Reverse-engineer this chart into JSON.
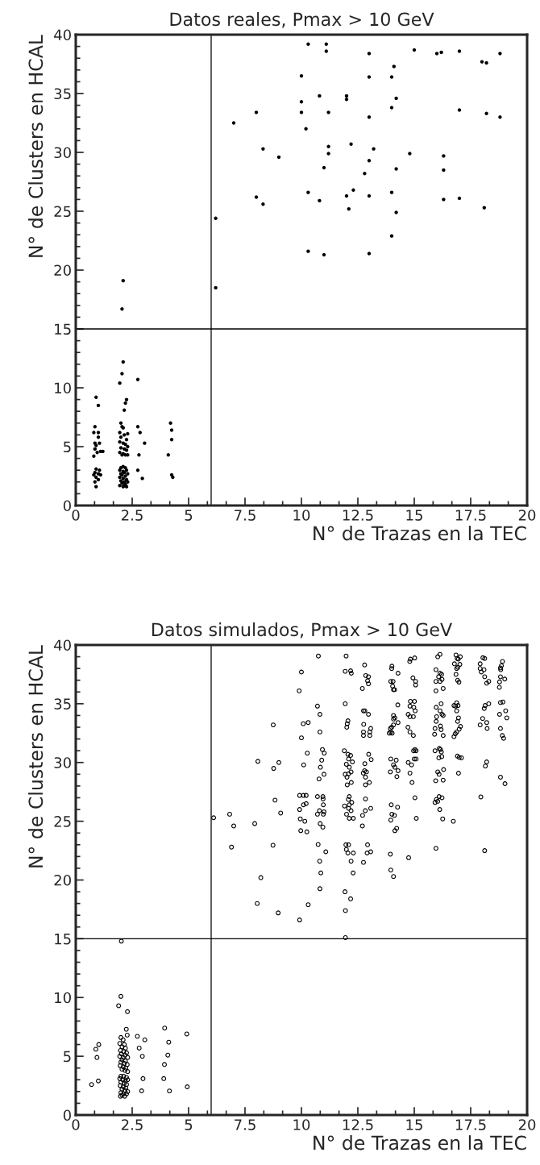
{
  "chart_data": [
    {
      "type": "scatter",
      "title": "Datos reales, Pmax > 10 GeV",
      "xlabel": "N° de Trazas en la TEC",
      "ylabel": "N° de Clusters en HCAL",
      "xlim": [
        0,
        20
      ],
      "ylim": [
        0,
        40
      ],
      "xticks": [
        0,
        2.5,
        5,
        7.5,
        10,
        12.5,
        15,
        17.5,
        20
      ],
      "yticks": [
        0,
        5,
        10,
        15,
        20,
        25,
        30,
        35,
        40
      ],
      "marker": "circle",
      "ref_lines": [
        {
          "axis": "x",
          "value": 6
        },
        {
          "axis": "y",
          "value": 15
        }
      ],
      "series": [
        {
          "color": "#000000",
          "x": [
            6.2,
            6.2,
            7.0,
            8.0,
            8.0,
            8.3,
            8.3,
            9.0,
            10.0,
            10.0,
            10.0,
            10.2,
            10.3,
            10.3,
            10.3,
            10.8,
            10.8,
            11.0,
            11.0,
            11.1,
            11.1,
            11.2,
            11.2,
            11.2,
            12.0,
            12.0,
            12.0,
            12.1,
            12.2,
            12.3,
            12.8,
            13.0,
            13.0,
            13.0,
            13.0,
            13.0,
            13.0,
            13.2,
            14.0,
            14.0,
            14.0,
            14.0,
            14.1,
            14.2,
            14.2,
            14.2,
            14.8,
            15.0,
            16.0,
            16.2,
            16.3,
            16.3,
            16.3,
            17.0,
            17.0,
            17.0,
            18.0,
            18.2,
            18.1,
            18.2,
            18.8,
            18.8,
            0.9,
            1.0,
            0.85,
            0.8,
            1.0,
            1.0,
            0.85,
            1.05,
            0.9,
            0.85,
            1.1,
            0.95,
            1.2,
            0.8,
            0.9,
            1.05,
            0.85,
            1.0,
            0.8,
            1.1,
            0.9,
            1.0,
            0.85,
            0.9,
            2.1,
            2.05,
            2.1,
            2.05,
            1.95,
            2.25,
            2.2,
            2.15,
            2.0,
            2.05,
            2.1,
            1.95,
            2.15,
            2.3,
            2.0,
            2.25,
            1.95,
            2.1,
            2.2,
            2.3,
            2.0,
            2.15,
            2.25,
            1.95,
            2.1,
            2.2,
            2.3,
            2.05,
            2.1,
            2.0,
            2.2,
            2.25,
            1.95,
            2.1,
            2.15,
            2.0,
            2.3,
            2.05,
            2.2,
            1.95,
            2.1,
            2.25,
            2.0,
            2.15,
            2.3,
            2.05,
            2.2,
            1.95,
            2.1,
            2.25,
            2.15,
            2.75,
            2.75,
            2.85,
            3.05,
            2.8,
            2.75,
            2.95,
            4.2,
            4.25,
            4.25,
            4.1,
            4.25,
            4.3
          ],
          "values": [
            18.5,
            24.4,
            32.5,
            33.4,
            26.2,
            25.6,
            30.3,
            29.6,
            36.5,
            34.3,
            33.4,
            32.0,
            39.2,
            26.6,
            21.6,
            34.8,
            25.9,
            28.7,
            21.3,
            39.2,
            38.6,
            30.5,
            29.9,
            33.4,
            34.8,
            34.5,
            26.3,
            25.2,
            30.7,
            26.8,
            28.2,
            38.4,
            36.4,
            33.0,
            29.3,
            26.3,
            21.4,
            30.3,
            36.4,
            33.8,
            26.6,
            22.9,
            37.3,
            34.6,
            28.6,
            24.9,
            29.9,
            38.7,
            38.4,
            38.5,
            29.7,
            28.5,
            26.0,
            38.6,
            33.6,
            26.1,
            37.7,
            37.6,
            25.3,
            33.3,
            38.4,
            33.0,
            9.2,
            8.5,
            6.7,
            6.2,
            6.2,
            5.8,
            5.3,
            5.3,
            5.1,
            4.8,
            4.6,
            4.5,
            4.6,
            4.2,
            3.1,
            3.0,
            2.8,
            2.7,
            2.6,
            2.6,
            2.4,
            2.2,
            2.0,
            1.6,
            19.1,
            16.7,
            12.2,
            11.2,
            10.4,
            9.0,
            8.7,
            8.1,
            7.0,
            6.7,
            6.6,
            6.2,
            6.0,
            6.1,
            5.8,
            5.6,
            5.4,
            5.3,
            5.2,
            5.0,
            4.9,
            4.8,
            4.7,
            4.5,
            4.4,
            4.3,
            4.3,
            4.3,
            3.3,
            3.2,
            3.2,
            3.0,
            3.0,
            2.9,
            2.8,
            2.7,
            2.7,
            2.6,
            2.5,
            2.4,
            2.3,
            2.2,
            2.1,
            2.0,
            2.0,
            1.9,
            1.8,
            1.7,
            1.6,
            1.6,
            1.7,
            10.7,
            6.7,
            6.2,
            5.3,
            4.3,
            3.0,
            2.3,
            7.0,
            6.4,
            5.6,
            4.3,
            2.6,
            2.4
          ]
        }
      ]
    },
    {
      "type": "scatter",
      "title": "Datos simulados, Pmax > 10 GeV",
      "xlabel": "N° de Trazas en la TEC",
      "ylabel": "N° de Clusters en HCAL",
      "xlim": [
        0,
        20
      ],
      "ylim": [
        0,
        40
      ],
      "xticks": [
        0,
        2.5,
        5,
        7.5,
        10,
        12.5,
        15,
        17.5,
        20
      ],
      "yticks": [
        0,
        5,
        10,
        15,
        20,
        25,
        30,
        35,
        40
      ],
      "marker": "circle",
      "ref_lines": [
        {
          "axis": "x",
          "value": 6
        },
        {
          "axis": "y",
          "value": 15
        }
      ],
      "series": [
        {
          "color": "#000000",
          "x": [
            6.11,
            6.82,
            7.0,
            6.9,
            7.93,
            8.07,
            8.77,
            9.0,
            8.75,
            8.83,
            9.08,
            8.74,
            8.2,
            10.0,
            9.9,
            10.08,
            10.3,
            10.0,
            10.26,
            10.1,
            9.92,
            10.09,
            10.21,
            10.09,
            10.21,
            9.92,
            9.95,
            10.15,
            9.97,
            10.24,
            10.75,
            10.71,
            10.82,
            10.82,
            10.93,
            11.01,
            10.9,
            10.84,
            11.0,
            10.78,
            10.71,
            10.95,
            10.96,
            10.97,
            10.8,
            11.0,
            10.71,
            10.97,
            10.83,
            10.95,
            10.74,
            11.08,
            10.81,
            10.86,
            10.82,
            11.93,
            12.18,
            11.95,
            8.04,
            8.97,
            10.3,
            9.92,
            11.95,
            11.98,
            11.94,
            12.18,
            12.21,
            11.94,
            12.06,
            12.03,
            12.01,
            11.9,
            12.06,
            12.18,
            12.09,
            12.26,
            11.99,
            12.12,
            11.94,
            12.09,
            12.2,
            12.02,
            12.21,
            12.03,
            12.12,
            12.08,
            12.23,
            12.12,
            11.91,
            12.09,
            12.2,
            12.0,
            12.12,
            12.3,
            11.97,
            12.09,
            11.99,
            12.3,
            12.06,
            12.2,
            12.29,
            12.8,
            12.85,
            12.97,
            12.93,
            12.97,
            12.7,
            12.75,
            12.81,
            12.97,
            12.76,
            13.07,
            12.75,
            13.03,
            13.03,
            12.75,
            12.98,
            13.09,
            12.81,
            12.8,
            12.88,
            12.74,
            12.84,
            13.01,
            12.84,
            12.84,
            13.07,
            12.83,
            12.71,
            12.7,
            12.93,
            13.07,
            12.91,
            12.75,
            14.01,
            14.0,
            14.28,
            13.96,
            14.06,
            14.04,
            14.08,
            14.13,
            14.27,
            14.08,
            14.14,
            14.08,
            14.28,
            14.08,
            14.0,
            13.94,
            13.96,
            14.02,
            13.89,
            13.96,
            14.2,
            14.08,
            14.14,
            14.28,
            13.94,
            14.23,
            13.98,
            14.26,
            14.01,
            14.12,
            13.96,
            14.22,
            14.14,
            13.94,
            13.96,
            14.08,
            14.83,
            15.02,
            14.8,
            14.94,
            15.06,
            15.06,
            14.83,
            15.01,
            14.81,
            14.98,
            15.04,
            14.73,
            14.81,
            14.96,
            14.72,
            14.81,
            14.96,
            15.03,
            14.97,
            15.08,
            15.0,
            15.08,
            14.73,
            14.88,
            14.81,
            14.9,
            15.03,
            15.09,
            14.75,
            16.04,
            16.14,
            15.96,
            16.14,
            16.08,
            16.21,
            16.23,
            15.96,
            16.14,
            16.28,
            15.96,
            15.97,
            16.19,
            16.14,
            16.23,
            16.28,
            15.99,
            15.97,
            16.16,
            16.19,
            15.92,
            15.9,
            16.28,
            16.11,
            16.16,
            15.92,
            16.2,
            16.09,
            16.22,
            16.3,
            16.04,
            16.1,
            15.95,
            16.28,
            15.92,
            16.1,
            15.98,
            16.04,
            16.13,
            16.23,
            16.26,
            16.73,
            15.96,
            16.85,
            17.04,
            16.9,
            16.95,
            16.78,
            17.02,
            16.93,
            16.88,
            16.85,
            16.92,
            16.98,
            16.88,
            16.76,
            16.83,
            16.94,
            16.88,
            16.96,
            16.92,
            17.05,
            16.99,
            16.88,
            16.82,
            16.76,
            16.91,
            16.99,
            17.09,
            16.96,
            18.04,
            18.12,
            17.92,
            18.09,
            17.92,
            17.97,
            18.12,
            18.3,
            18.21,
            18.14,
            18.3,
            18.1,
            18.03,
            17.92,
            18.21,
            18.23,
            18.21,
            18.15,
            17.95,
            18.12,
            18.91,
            18.86,
            18.82,
            18.83,
            18.82,
            19.01,
            18.78,
            18.77,
            18.82,
            18.93,
            18.78,
            19.05,
            19.1,
            18.82,
            18.9,
            18.96,
            18.82,
            19.02,
            2.02,
            2.0,
            1.9,
            2.29,
            2.24,
            2.0,
            2.1,
            2.28,
            1.95,
            2.15,
            2.05,
            2.2,
            1.98,
            2.12,
            2.25,
            2.02,
            2.18,
            1.95,
            2.1,
            2.3,
            2.05,
            2.2,
            2.0,
            2.15,
            2.28,
            1.97,
            2.1,
            2.22,
            2.05,
            2.18,
            2.3,
            2.0,
            2.12,
            2.25,
            1.95,
            2.08,
            2.2,
            2.3,
            2.0,
            2.15,
            2.25,
            1.97,
            2.1,
            2.22,
            2.05,
            2.18,
            2.3,
            2.0,
            2.12,
            2.25,
            2.05,
            2.17,
            1.98,
            2.73,
            3.06,
            3.94,
            4.92,
            4.12,
            2.81,
            4.08,
            2.95,
            3.93,
            2.98,
            3.9,
            2.92,
            4.15,
            4.94,
            1.02,
            0.89,
            0.94,
            0.7,
            1.0
          ],
          "values": [
            25.3,
            25.6,
            24.6,
            22.8,
            24.8,
            30.1,
            29.5,
            30.0,
            33.2,
            26.8,
            25.7,
            22.96,
            20.2,
            37.7,
            36.1,
            33.3,
            33.4,
            32.1,
            30.8,
            29.8,
            27.2,
            27.2,
            27.2,
            26.4,
            26.5,
            26.0,
            25.2,
            25.0,
            24.2,
            24.1,
            39.06,
            34.8,
            34.1,
            32.6,
            31.1,
            30.8,
            30.2,
            29.6,
            29.0,
            28.6,
            27.1,
            27.1,
            26.9,
            26.4,
            25.9,
            25.8,
            25.6,
            25.6,
            24.8,
            24.5,
            23.03,
            22.4,
            21.6,
            20.6,
            19.26,
            19.0,
            18.4,
            17.4,
            18.0,
            17.2,
            17.9,
            16.6,
            15.1,
            39.06,
            37.76,
            37.8,
            37.6,
            35.0,
            33.55,
            33.3,
            33.0,
            31.0,
            30.7,
            30.6,
            30.3,
            30.05,
            29.85,
            29.6,
            29.0,
            29.04,
            29.2,
            28.75,
            28.3,
            28.1,
            27.1,
            26.85,
            26.6,
            26.4,
            26.3,
            26.1,
            25.9,
            25.6,
            25.25,
            25.25,
            23.0,
            23.0,
            22.6,
            22.3,
            22.3,
            21.6,
            20.6,
            38.3,
            37.4,
            37.3,
            36.96,
            36.7,
            36.3,
            34.4,
            34.4,
            34.1,
            33.25,
            32.9,
            32.6,
            32.6,
            32.3,
            32.3,
            30.7,
            30.25,
            29.9,
            29.3,
            29.2,
            29.1,
            28.75,
            28.3,
            28.1,
            26.9,
            26.1,
            25.9,
            25.5,
            24.6,
            23.0,
            22.4,
            22.3,
            21.5,
            38.2,
            38.0,
            37.6,
            36.9,
            36.9,
            36.5,
            36.2,
            36.2,
            34.9,
            34.0,
            33.8,
            33.7,
            33.4,
            33.2,
            33.0,
            32.9,
            32.6,
            32.5,
            32.5,
            30.3,
            30.2,
            29.8,
            29.6,
            29.3,
            29.2,
            28.8,
            26.4,
            26.2,
            25.6,
            25.5,
            25.1,
            24.4,
            24.2,
            22.2,
            20.85,
            20.3,
            38.8,
            38.9,
            38.6,
            37.2,
            36.9,
            36.6,
            35.2,
            35.2,
            34.8,
            34.7,
            34.4,
            34.1,
            33.9,
            33.9,
            33.0,
            32.6,
            32.3,
            31.1,
            31.0,
            31.0,
            30.3,
            30.3,
            30.0,
            29.8,
            29.1,
            28.3,
            27.0,
            25.25,
            21.9,
            39.0,
            39.2,
            37.9,
            37.6,
            37.3,
            37.5,
            37.07,
            36.9,
            36.9,
            36.3,
            36.1,
            34.7,
            35.0,
            34.4,
            34.1,
            34.0,
            33.9,
            33.5,
            33.1,
            32.8,
            32.9,
            32.4,
            32.3,
            31.2,
            31.1,
            31.0,
            30.9,
            30.4,
            30.5,
            29.4,
            29.2,
            29.0,
            28.45,
            28.5,
            26.6,
            27.1,
            26.85,
            26.7,
            26.0,
            27.0,
            25.2,
            25.0,
            22.7,
            39.15,
            39.0,
            38.85,
            38.8,
            38.4,
            38.35,
            38.1,
            38.0,
            37.5,
            37.0,
            36.84,
            35.08,
            34.85,
            34.8,
            34.85,
            34.4,
            33.8,
            33.5,
            33.07,
            32.84,
            32.6,
            32.45,
            32.2,
            30.55,
            30.44,
            30.4,
            29.09,
            38.92,
            38.85,
            38.4,
            37.9,
            38.0,
            37.7,
            37.3,
            36.9,
            36.75,
            34.85,
            35.0,
            34.6,
            33.75,
            33.2,
            33.4,
            32.9,
            30.05,
            29.7,
            27.07,
            22.5,
            38.6,
            38.24,
            38.05,
            37.9,
            37.3,
            37.1,
            36.86,
            36.4,
            35.1,
            35.15,
            34.1,
            34.4,
            33.8,
            32.9,
            32.3,
            32.06,
            28.75,
            28.2,
            14.8,
            10.1,
            9.3,
            8.8,
            7.3,
            6.6,
            6.4,
            6.8,
            6.1,
            6.0,
            5.8,
            5.7,
            5.5,
            5.4,
            5.3,
            5.2,
            5.1,
            5.0,
            4.9,
            4.9,
            4.7,
            4.6,
            4.5,
            4.4,
            4.3,
            4.2,
            4.1,
            4.0,
            3.9,
            3.8,
            3.7,
            3.3,
            3.3,
            3.2,
            3.1,
            3.0,
            2.9,
            3.0,
            2.8,
            2.7,
            2.6,
            2.5,
            2.4,
            2.3,
            2.2,
            2.1,
            2.0,
            1.9,
            1.8,
            1.8,
            1.7,
            1.6,
            1.6,
            6.7,
            6.4,
            7.4,
            6.9,
            6.2,
            5.7,
            5.1,
            5.0,
            4.3,
            3.1,
            3.1,
            2.06,
            2.05,
            2.4,
            6.0,
            5.6,
            4.9,
            2.6,
            2.9
          ]
        }
      ]
    }
  ]
}
